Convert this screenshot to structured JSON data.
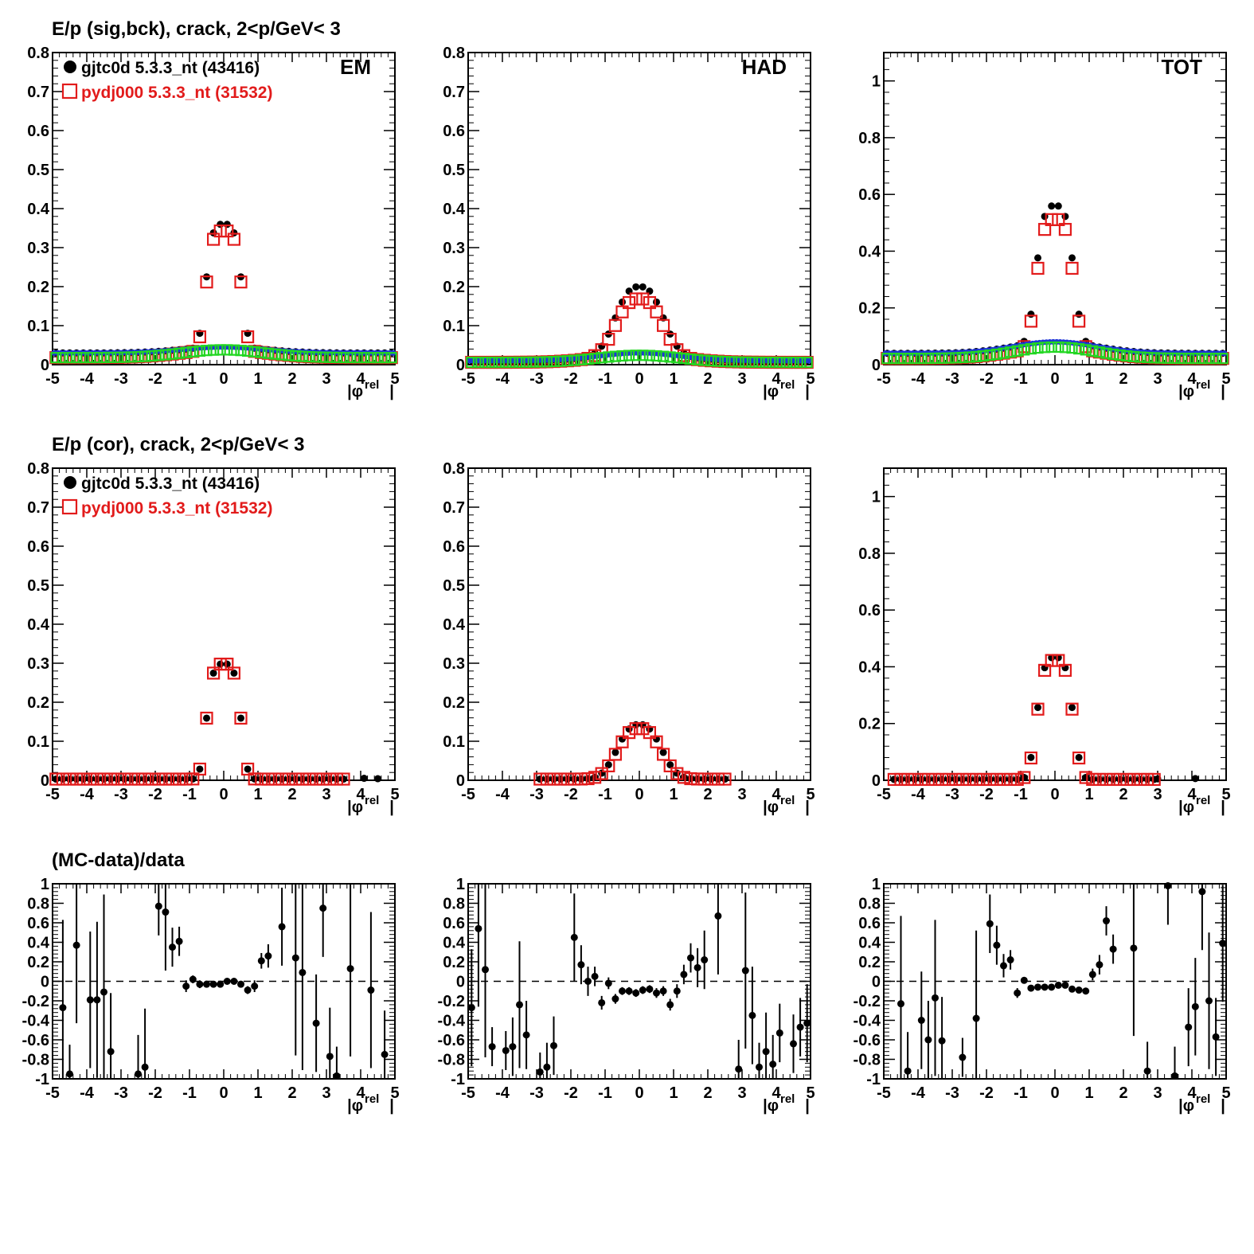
{
  "figure": {
    "row_titles": [
      "E/p (sig,bck), crack,  2<p/GeV< 3",
      "E/p (cor), crack,  2<p/GeV< 3",
      "(MC-data)/data"
    ],
    "legend": {
      "data_label": "gjtc0d 5.3.3_nt (43416)",
      "mc_label": "pydj000 5.3.3_nt (31532)"
    },
    "x_axis_title": "|φ",
    "x_axis_title_sup": "rel",
    "x_axis_title_end": "|",
    "panel_labels": [
      "EM",
      "HAD",
      "TOT"
    ],
    "colors": {
      "data": "#000000",
      "mc": "#e21b1b",
      "bck_data": "#1f35d6",
      "bck_mc": "#22d622"
    }
  },
  "chart_data": [
    {
      "type": "scatter",
      "panel": "row1-em",
      "row": 0,
      "col": 0,
      "label": "EM",
      "xlim": [
        -5,
        5
      ],
      "ylim": [
        0,
        0.8
      ],
      "yticks": [
        0,
        0.1,
        0.2,
        0.3,
        0.4,
        0.5,
        0.6,
        0.7,
        0.8
      ],
      "yticklabels": [
        "0",
        "0.1",
        "0.2",
        "0.3",
        "0.4",
        "0.5",
        "0.6",
        "0.7",
        "0.8"
      ],
      "xticks": [
        -5,
        -4,
        -3,
        -2,
        -1,
        0,
        1,
        2,
        3,
        4,
        5
      ],
      "xticklabels": [
        "-5",
        "-4",
        "-3",
        "-2",
        "-1",
        "0",
        "1",
        "2",
        "3",
        "4",
        "5"
      ],
      "signal": {
        "A_data": 0.315,
        "A_mc": 0.305,
        "sigma": 0.58,
        "p": 4.0
      },
      "background": {
        "b_data": 0.03,
        "b_mc": 0.018,
        "amp_data": 0.015,
        "amp_mc": 0.02,
        "width": 1.2
      }
    },
    {
      "type": "scatter",
      "panel": "row1-had",
      "row": 0,
      "col": 1,
      "label": "HAD",
      "xlim": [
        -5,
        5
      ],
      "ylim": [
        0,
        0.8
      ],
      "yticks": [
        0,
        0.1,
        0.2,
        0.3,
        0.4,
        0.5,
        0.6,
        0.7,
        0.8
      ],
      "yticklabels": [
        "0",
        "0.1",
        "0.2",
        "0.3",
        "0.4",
        "0.5",
        "0.6",
        "0.7",
        "0.8"
      ],
      "xticks": [
        -5,
        -4,
        -3,
        -2,
        -1,
        0,
        1,
        2,
        3,
        4,
        5
      ],
      "xticklabels": [
        "-5",
        "-4",
        "-3",
        "-2",
        "-1",
        "0",
        "1",
        "2",
        "3",
        "4",
        "5"
      ],
      "signal": {
        "A_data": 0.17,
        "A_mc": 0.145,
        "sigma": 0.85,
        "p": 2.6
      },
      "background": {
        "b_data": 0.01,
        "b_mc": 0.006,
        "amp_data": 0.02,
        "amp_mc": 0.018,
        "width": 1.2
      }
    },
    {
      "type": "scatter",
      "panel": "row1-tot",
      "row": 0,
      "col": 2,
      "label": "TOT",
      "xlim": [
        -5,
        5
      ],
      "ylim": [
        0,
        1.1
      ],
      "yticks": [
        0,
        0.2,
        0.4,
        0.6,
        0.8,
        1.0
      ],
      "yticklabels": [
        "0",
        "0.2",
        "0.4",
        "0.6",
        "0.8",
        "1"
      ],
      "xticks": [
        -5,
        -4,
        -3,
        -2,
        -1,
        0,
        1,
        2,
        3,
        4,
        5
      ],
      "xticklabels": [
        "-5",
        "-4",
        "-3",
        "-2",
        "-1",
        "0",
        "1",
        "2",
        "3",
        "4",
        "5"
      ],
      "signal": {
        "A_data": 0.48,
        "A_mc": 0.45,
        "sigma": 0.62,
        "p": 3.5
      },
      "background": {
        "b_data": 0.04,
        "b_mc": 0.022,
        "amp_data": 0.04,
        "amp_mc": 0.04,
        "width": 1.2
      }
    },
    {
      "type": "scatter",
      "panel": "row2-em",
      "row": 1,
      "col": 0,
      "xlim": [
        -5,
        5
      ],
      "ylim": [
        0,
        0.8
      ],
      "yticks": [
        0,
        0.1,
        0.2,
        0.3,
        0.4,
        0.5,
        0.6,
        0.7,
        0.8
      ],
      "yticklabels": [
        "0",
        "0.1",
        "0.2",
        "0.3",
        "0.4",
        "0.5",
        "0.6",
        "0.7",
        "0.8"
      ],
      "xticks": [
        -5,
        -4,
        -3,
        -2,
        -1,
        0,
        1,
        2,
        3,
        4,
        5
      ],
      "xticklabels": [
        "-5",
        "-4",
        "-3",
        "-2",
        "-1",
        "0",
        "1",
        "2",
        "3",
        "4",
        "5"
      ],
      "signal": {
        "A_data": 0.295,
        "A_mc": 0.295,
        "sigma": 0.56,
        "p": 4.0
      },
      "range": [
        -4.9,
        3.5
      ],
      "extras": [
        [
          4.1,
          0.005
        ],
        [
          4.5,
          0.004
        ]
      ]
    },
    {
      "type": "scatter",
      "panel": "row2-had",
      "row": 1,
      "col": 1,
      "xlim": [
        -5,
        5
      ],
      "ylim": [
        0,
        0.8
      ],
      "yticks": [
        0,
        0.1,
        0.2,
        0.3,
        0.4,
        0.5,
        0.6,
        0.7,
        0.8
      ],
      "yticklabels": [
        "0",
        "0.1",
        "0.2",
        "0.3",
        "0.4",
        "0.5",
        "0.6",
        "0.7",
        "0.8"
      ],
      "xticks": [
        -5,
        -4,
        -3,
        -2,
        -1,
        0,
        1,
        2,
        3,
        4,
        5
      ],
      "xticklabels": [
        "-5",
        "-4",
        "-3",
        "-2",
        "-1",
        "0",
        "1",
        "2",
        "3",
        "4",
        "5"
      ],
      "signal": {
        "A_data": 0.14,
        "A_mc": 0.13,
        "sigma": 0.8,
        "p": 2.5
      },
      "range": [
        -3.0,
        2.6
      ],
      "extras": []
    },
    {
      "type": "scatter",
      "panel": "row2-tot",
      "row": 1,
      "col": 2,
      "xlim": [
        -5,
        5
      ],
      "ylim": [
        0,
        1.1
      ],
      "yticks": [
        0,
        0.2,
        0.4,
        0.6,
        0.8,
        1.0
      ],
      "yticklabels": [
        "0",
        "0.2",
        "0.4",
        "0.6",
        "0.8",
        "1"
      ],
      "xticks": [
        -5,
        -4,
        -3,
        -2,
        -1,
        0,
        1,
        2,
        3,
        4,
        5
      ],
      "xticklabels": [
        "-5",
        "-4",
        "-3",
        "-2",
        "-1",
        "0",
        "1",
        "2",
        "3",
        "4",
        "5"
      ],
      "signal": {
        "A_data": 0.43,
        "A_mc": 0.42,
        "sigma": 0.6,
        "p": 3.5
      },
      "range": [
        -4.8,
        2.9
      ],
      "extras": [
        [
          3.0,
          0.005
        ],
        [
          4.1,
          0.006
        ]
      ]
    },
    {
      "type": "scatter",
      "panel": "row3-em",
      "row": 2,
      "col": 0,
      "xlim": [
        -5,
        5
      ],
      "ylim": [
        -1,
        1
      ],
      "yticks": [
        -1,
        -0.8,
        -0.6,
        -0.4,
        -0.2,
        0,
        0.2,
        0.4,
        0.6,
        0.8,
        1
      ],
      "yticklabels": [
        "-1",
        "-0.8",
        "-0.6",
        "-0.4",
        "-0.2",
        "0",
        "0.2",
        "0.4",
        "0.6",
        "0.8",
        "1"
      ],
      "xticks": [
        -5,
        -4,
        -3,
        -2,
        -1,
        0,
        1,
        2,
        3,
        4,
        5
      ],
      "xticklabels": [
        "-5",
        "-4",
        "-3",
        "-2",
        "-1",
        "0",
        "1",
        "2",
        "3",
        "4",
        "5"
      ],
      "points": [
        [
          -4.7,
          -0.27,
          0.9
        ],
        [
          -4.5,
          -0.95,
          0.3
        ],
        [
          -4.3,
          0.37,
          0.8
        ],
        [
          -3.9,
          -0.19,
          0.7
        ],
        [
          -3.7,
          -0.19,
          0.8
        ],
        [
          -3.5,
          -0.11,
          1.0
        ],
        [
          -3.3,
          -0.72,
          0.6
        ],
        [
          -2.5,
          -0.95,
          0.4
        ],
        [
          -2.3,
          -0.88,
          0.6
        ],
        [
          -1.9,
          0.77,
          0.3
        ],
        [
          -1.7,
          0.71,
          0.6
        ],
        [
          -1.5,
          0.35,
          0.2
        ],
        [
          -1.3,
          0.41,
          0.15
        ],
        [
          -1.1,
          -0.05,
          0.06
        ],
        [
          -0.9,
          0.02,
          0.04
        ],
        [
          -0.7,
          -0.03,
          0.04
        ],
        [
          -0.5,
          -0.03,
          0.03
        ],
        [
          -0.3,
          -0.03,
          0.03
        ],
        [
          -0.1,
          -0.03,
          0.03
        ],
        [
          0.1,
          0.0,
          0.03
        ],
        [
          0.3,
          0.0,
          0.03
        ],
        [
          0.5,
          -0.03,
          0.03
        ],
        [
          0.7,
          -0.09,
          0.04
        ],
        [
          0.9,
          -0.05,
          0.06
        ],
        [
          1.1,
          0.21,
          0.08
        ],
        [
          1.3,
          0.26,
          0.12
        ],
        [
          1.7,
          0.56,
          0.4
        ],
        [
          2.1,
          0.24,
          1.0
        ],
        [
          2.3,
          0.09,
          1.0
        ],
        [
          2.7,
          -0.43,
          0.5
        ],
        [
          2.9,
          0.75,
          0.5
        ],
        [
          3.1,
          -0.77,
          0.5
        ],
        [
          3.3,
          -0.97,
          0.3
        ],
        [
          3.7,
          0.13,
          0.9
        ],
        [
          4.3,
          -0.09,
          0.8
        ],
        [
          4.7,
          -0.75,
          0.45
        ]
      ]
    },
    {
      "type": "scatter",
      "panel": "row3-had",
      "row": 2,
      "col": 1,
      "xlim": [
        -5,
        5
      ],
      "ylim": [
        -1,
        1
      ],
      "yticks": [
        -1,
        -0.8,
        -0.6,
        -0.4,
        -0.2,
        0,
        0.2,
        0.4,
        0.6,
        0.8,
        1
      ],
      "yticklabels": [
        "-1",
        "-0.8",
        "-0.6",
        "-0.4",
        "-0.2",
        "0",
        "0.2",
        "0.4",
        "0.6",
        "0.8",
        "1"
      ],
      "xticks": [
        -5,
        -4,
        -3,
        -2,
        -1,
        0,
        1,
        2,
        3,
        4,
        5
      ],
      "xticklabels": [
        "-5",
        "-4",
        "-3",
        "-2",
        "-1",
        "0",
        "1",
        "2",
        "3",
        "4",
        "5"
      ],
      "points": [
        [
          -4.9,
          -0.27,
          0.6
        ],
        [
          -4.7,
          0.54,
          0.8
        ],
        [
          -4.5,
          0.12,
          0.9
        ],
        [
          -4.3,
          -0.67,
          0.2
        ],
        [
          -3.9,
          -0.71,
          0.2
        ],
        [
          -3.7,
          -0.67,
          0.3
        ],
        [
          -3.5,
          -0.24,
          0.65
        ],
        [
          -3.3,
          -0.55,
          0.35
        ],
        [
          -2.9,
          -0.93,
          0.2
        ],
        [
          -2.7,
          -0.88,
          0.25
        ],
        [
          -2.5,
          -0.66,
          0.3
        ],
        [
          -1.9,
          0.45,
          0.45
        ],
        [
          -1.7,
          0.17,
          0.2
        ],
        [
          -1.5,
          0.0,
          0.15
        ],
        [
          -1.3,
          0.05,
          0.1
        ],
        [
          -1.1,
          -0.22,
          0.07
        ],
        [
          -0.9,
          -0.02,
          0.06
        ],
        [
          -0.7,
          -0.18,
          0.05
        ],
        [
          -0.5,
          -0.1,
          0.04
        ],
        [
          -0.3,
          -0.1,
          0.04
        ],
        [
          -0.1,
          -0.12,
          0.04
        ],
        [
          0.1,
          -0.09,
          0.04
        ],
        [
          0.3,
          -0.08,
          0.04
        ],
        [
          0.5,
          -0.12,
          0.05
        ],
        [
          0.7,
          -0.1,
          0.05
        ],
        [
          0.9,
          -0.24,
          0.06
        ],
        [
          1.1,
          -0.1,
          0.07
        ],
        [
          1.3,
          0.07,
          0.1
        ],
        [
          1.5,
          0.24,
          0.15
        ],
        [
          1.7,
          0.14,
          0.2
        ],
        [
          1.9,
          0.22,
          0.3
        ],
        [
          2.3,
          0.67,
          0.6
        ],
        [
          2.9,
          -0.9,
          0.3
        ],
        [
          3.1,
          0.11,
          0.8
        ],
        [
          3.3,
          -0.35,
          0.5
        ],
        [
          3.5,
          -0.88,
          0.25
        ],
        [
          3.7,
          -0.72,
          0.4
        ],
        [
          3.9,
          -0.85,
          0.3
        ],
        [
          4.1,
          -0.53,
          0.3
        ],
        [
          4.5,
          -0.64,
          0.3
        ],
        [
          4.7,
          -0.47,
          0.3
        ],
        [
          4.9,
          -0.43,
          0.4
        ]
      ]
    },
    {
      "type": "scatter",
      "panel": "row3-tot",
      "row": 2,
      "col": 2,
      "xlim": [
        -5,
        5
      ],
      "ylim": [
        -1,
        1
      ],
      "yticks": [
        -1,
        -0.8,
        -0.6,
        -0.4,
        -0.2,
        0,
        0.2,
        0.4,
        0.6,
        0.8,
        1
      ],
      "yticklabels": [
        "-1",
        "-0.8",
        "-0.6",
        "-0.4",
        "-0.2",
        "0",
        "0.2",
        "0.4",
        "0.6",
        "0.8",
        "1"
      ],
      "xticks": [
        -5,
        -4,
        -3,
        -2,
        -1,
        0,
        1,
        2,
        3,
        4,
        5
      ],
      "xticklabels": [
        "-5",
        "-4",
        "-3",
        "-2",
        "-1",
        "0",
        "1",
        "2",
        "3",
        "4",
        "5"
      ],
      "points": [
        [
          -4.5,
          -0.23,
          0.9
        ],
        [
          -4.3,
          -0.92,
          0.4
        ],
        [
          -3.9,
          -0.4,
          0.5
        ],
        [
          -3.7,
          -0.6,
          0.4
        ],
        [
          -3.5,
          -0.17,
          0.8
        ],
        [
          -3.3,
          -0.61,
          0.45
        ],
        [
          -2.7,
          -0.78,
          0.2
        ],
        [
          -2.3,
          -0.38,
          0.9
        ],
        [
          -1.9,
          0.59,
          0.3
        ],
        [
          -1.7,
          0.37,
          0.2
        ],
        [
          -1.5,
          0.16,
          0.12
        ],
        [
          -1.3,
          0.22,
          0.1
        ],
        [
          -1.1,
          -0.12,
          0.05
        ],
        [
          -0.9,
          0.01,
          0.03
        ],
        [
          -0.7,
          -0.07,
          0.03
        ],
        [
          -0.5,
          -0.06,
          0.03
        ],
        [
          -0.3,
          -0.06,
          0.03
        ],
        [
          -0.1,
          -0.06,
          0.03
        ],
        [
          0.1,
          -0.04,
          0.03
        ],
        [
          0.3,
          -0.04,
          0.03
        ],
        [
          0.5,
          -0.08,
          0.03
        ],
        [
          0.7,
          -0.09,
          0.03
        ],
        [
          0.9,
          -0.1,
          0.03
        ],
        [
          1.1,
          0.07,
          0.06
        ],
        [
          1.3,
          0.17,
          0.1
        ],
        [
          1.5,
          0.62,
          0.15
        ],
        [
          1.7,
          0.33,
          0.15
        ],
        [
          2.3,
          0.34,
          0.9
        ],
        [
          2.7,
          -0.92,
          0.3
        ],
        [
          3.3,
          0.98,
          0.4
        ],
        [
          3.5,
          -0.97,
          0.3
        ],
        [
          3.9,
          -0.47,
          0.4
        ],
        [
          4.1,
          -0.26,
          0.5
        ],
        [
          4.3,
          0.92,
          0.6
        ],
        [
          4.5,
          -0.2,
          0.7
        ],
        [
          4.7,
          -0.57,
          0.4
        ],
        [
          4.9,
          0.39,
          0.6
        ]
      ]
    }
  ]
}
